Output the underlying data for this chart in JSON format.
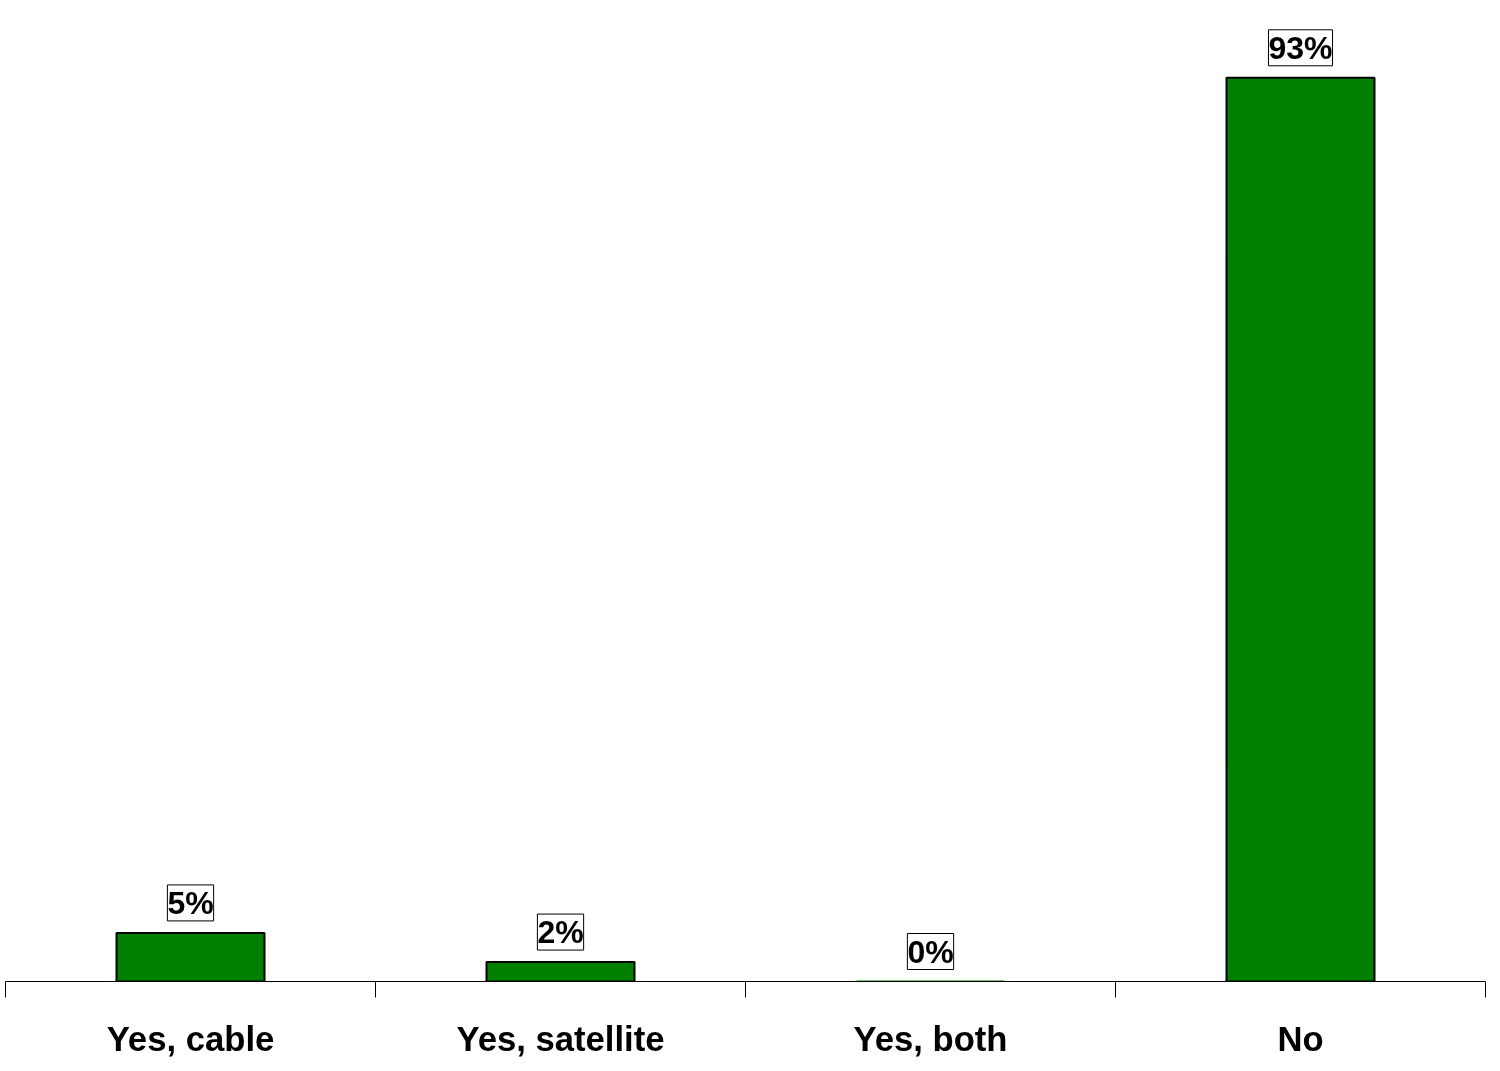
{
  "chart_data": {
    "type": "bar",
    "categories": [
      "Yes, cable",
      "Yes, satellite",
      "Yes, both",
      "No"
    ],
    "values": [
      5,
      2,
      0,
      93
    ],
    "color": "#008000",
    "value_labels": [
      "5%",
      "2%",
      "0%",
      "93%"
    ],
    "grid": false
  }
}
